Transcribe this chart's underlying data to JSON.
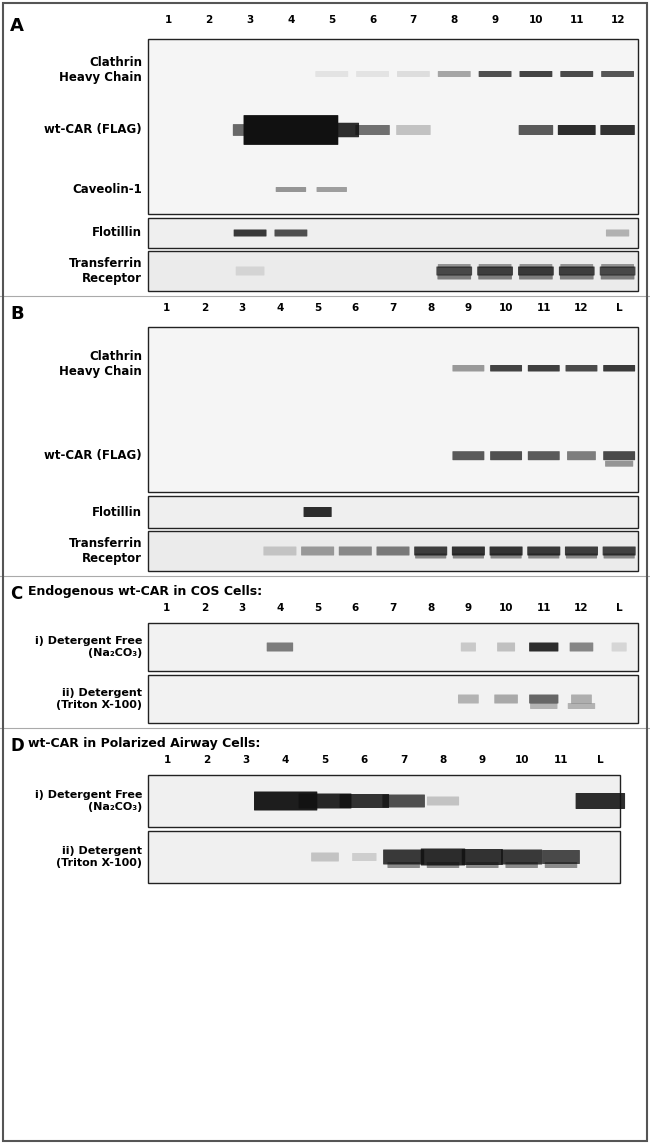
{
  "fig_bg": "#ffffff",
  "blot_bg_light": "#f0f0f0",
  "blot_bg_medium": "#e8e8e8",
  "sections": {
    "A": {
      "label": "A",
      "lane_nums_12": [
        "1",
        "2",
        "3",
        "4",
        "5",
        "6",
        "7",
        "8",
        "9",
        "10",
        "11",
        "12"
      ]
    },
    "B": {
      "label": "B",
      "lane_nums_13": [
        "1",
        "2",
        "3",
        "4",
        "5",
        "6",
        "7",
        "8",
        "9",
        "10",
        "11",
        "12",
        "L"
      ]
    },
    "C": {
      "label": "C",
      "subtitle": "Endogenous wt-CAR in COS Cells:",
      "lane_nums_13": [
        "1",
        "2",
        "3",
        "4",
        "5",
        "6",
        "7",
        "8",
        "9",
        "10",
        "11",
        "12",
        "L"
      ]
    },
    "D": {
      "label": "D",
      "subtitle": "wt-CAR in Polarized Airway Cells:",
      "lane_nums_12": [
        "1",
        "2",
        "3",
        "4",
        "5",
        "6",
        "7",
        "8",
        "9",
        "10",
        "11",
        "L"
      ]
    }
  }
}
